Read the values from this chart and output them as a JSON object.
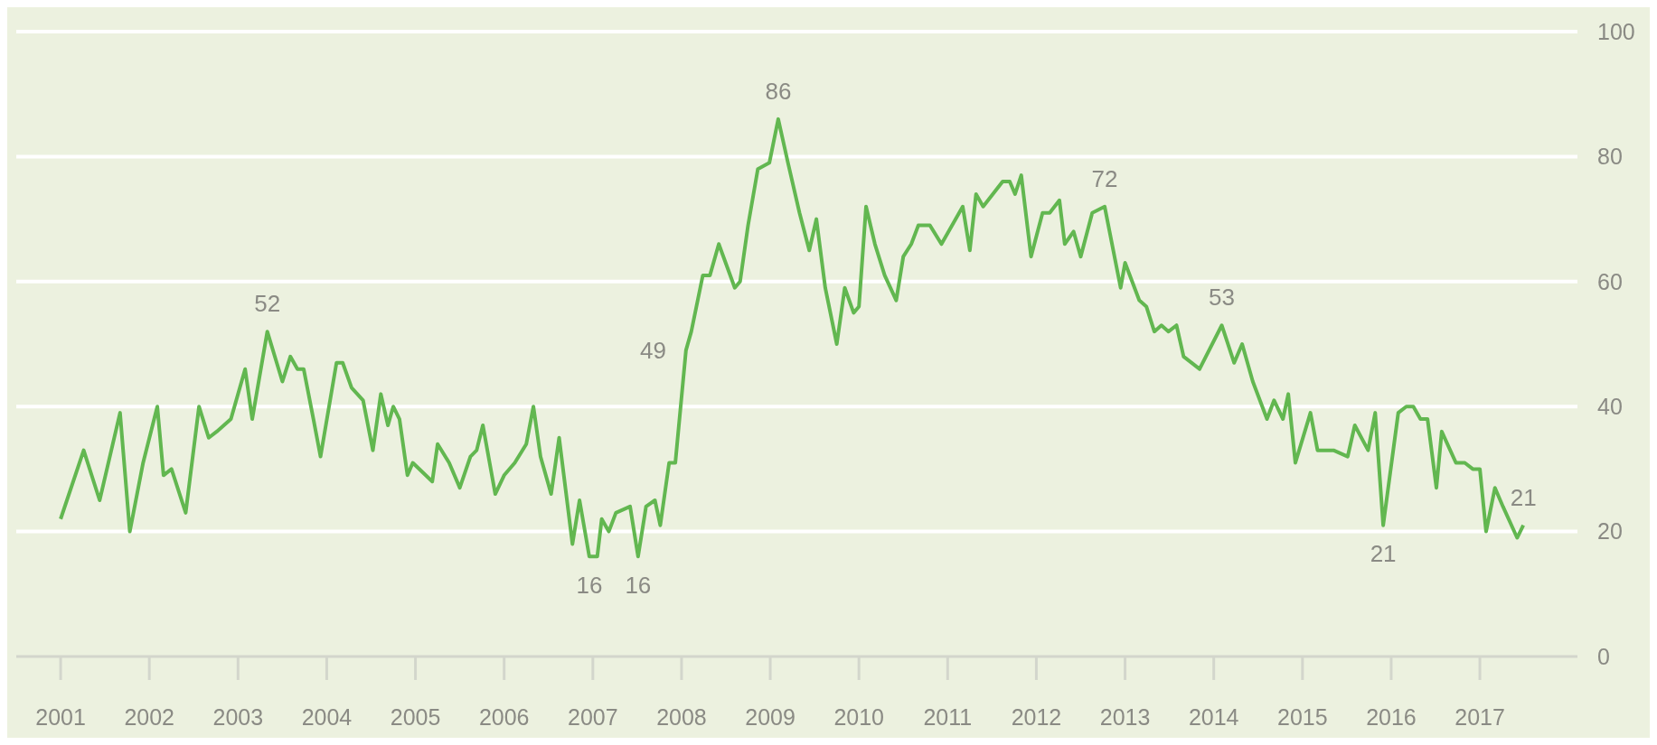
{
  "chart_data": {
    "type": "line",
    "color": "#62b750",
    "grid": "y",
    "marker": "none",
    "line_style": "solid",
    "legend": false,
    "xlim": [
      2000.5,
      2018.1
    ],
    "xticks": [
      2001,
      2002,
      2003,
      2004,
      2005,
      2006,
      2007,
      2008,
      2009,
      2010,
      2011,
      2012,
      2013,
      2014,
      2015,
      2016,
      2017
    ],
    "ylim": [
      0,
      100
    ],
    "yticks": [
      0,
      20,
      40,
      60,
      80,
      100
    ],
    "x": [
      2001.0,
      2001.26,
      2001.44,
      2001.67,
      2001.78,
      2001.93,
      2002.09,
      2002.16,
      2002.25,
      2002.41,
      2002.56,
      2002.67,
      2002.76,
      2002.92,
      2003.08,
      2003.16,
      2003.33,
      2003.5,
      2003.59,
      2003.67,
      2003.74,
      2003.85,
      2003.93,
      2004.11,
      2004.18,
      2004.28,
      2004.41,
      2004.52,
      2004.61,
      2004.69,
      2004.75,
      2004.82,
      2004.91,
      2004.97,
      2005.19,
      2005.25,
      2005.38,
      2005.5,
      2005.62,
      2005.69,
      2005.76,
      2005.9,
      2006.0,
      2006.12,
      2006.25,
      2006.33,
      2006.41,
      2006.53,
      2006.62,
      2006.77,
      2006.85,
      2006.96,
      2007.05,
      2007.1,
      2007.18,
      2007.26,
      2007.42,
      2007.51,
      2007.6,
      2007.7,
      2007.76,
      2007.86,
      2007.93,
      2008.05,
      2008.11,
      2008.24,
      2008.32,
      2008.42,
      2008.6,
      2008.66,
      2008.75,
      2008.86,
      2008.99,
      2009.09,
      2009.2,
      2009.33,
      2009.44,
      2009.52,
      2009.62,
      2009.75,
      2009.84,
      2009.94,
      2010.0,
      2010.08,
      2010.18,
      2010.29,
      2010.42,
      2010.5,
      2010.59,
      2010.67,
      2010.8,
      2010.93,
      2011.17,
      2011.25,
      2011.32,
      2011.4,
      2011.62,
      2011.7,
      2011.76,
      2011.83,
      2011.94,
      2012.07,
      2012.15,
      2012.26,
      2012.32,
      2012.42,
      2012.5,
      2012.63,
      2012.77,
      2012.95,
      2013.0,
      2013.16,
      2013.24,
      2013.33,
      2013.41,
      2013.49,
      2013.58,
      2013.66,
      2013.84,
      2014.09,
      2014.23,
      2014.32,
      2014.44,
      2014.6,
      2014.68,
      2014.78,
      2014.84,
      2014.92,
      2015.09,
      2015.17,
      2015.35,
      2015.51,
      2015.59,
      2015.74,
      2015.82,
      2015.91,
      2016.08,
      2016.17,
      2016.25,
      2016.33,
      2016.41,
      2016.51,
      2016.57,
      2016.73,
      2016.83,
      2016.92,
      2017.0,
      2017.07,
      2017.17,
      2017.26,
      2017.42,
      2017.49
    ],
    "values": [
      22,
      33,
      25,
      39,
      20,
      31,
      40,
      29,
      30,
      23,
      40,
      35,
      36,
      38,
      46,
      38,
      52,
      44,
      48,
      46,
      46,
      38,
      32,
      47,
      47,
      43,
      41,
      33,
      42,
      37,
      40,
      38,
      29,
      31,
      28,
      34,
      31,
      27,
      32,
      33,
      37,
      26,
      29,
      31,
      34,
      40,
      32,
      26,
      35,
      18,
      25,
      16,
      16,
      22,
      20,
      23,
      24,
      16,
      24,
      25,
      21,
      31,
      31,
      49,
      52,
      61,
      61,
      66,
      59,
      60,
      69,
      78,
      79,
      86,
      79,
      71,
      65,
      70,
      59,
      50,
      59,
      55,
      56,
      72,
      66,
      61,
      57,
      64,
      66,
      69,
      69,
      66,
      72,
      65,
      74,
      72,
      76,
      76,
      74,
      77,
      64,
      71,
      71,
      73,
      66,
      68,
      64,
      71,
      72,
      59,
      63,
      57,
      56,
      52,
      53,
      52,
      53,
      48,
      46,
      53,
      47,
      50,
      44,
      38,
      41,
      38,
      42,
      31,
      39,
      33,
      33,
      32,
      37,
      33,
      39,
      21,
      39,
      40,
      40,
      38,
      38,
      27,
      36,
      31,
      31,
      30,
      30,
      20,
      27,
      24,
      19,
      21
    ],
    "annotations": [
      {
        "text": "52",
        "x": 2003.33,
        "y": 52
      },
      {
        "text": "16",
        "x": 2006.96,
        "y": 16
      },
      {
        "text": "16",
        "x": 2007.51,
        "y": 16
      },
      {
        "text": "49",
        "x": 2008.05,
        "y": 49
      },
      {
        "text": "86",
        "x": 2009.09,
        "y": 86
      },
      {
        "text": "72",
        "x": 2012.77,
        "y": 72
      },
      {
        "text": "53",
        "x": 2014.09,
        "y": 53
      },
      {
        "text": "21",
        "x": 2015.91,
        "y": 21
      },
      {
        "text": "21",
        "x": 2017.49,
        "y": 21
      }
    ]
  }
}
